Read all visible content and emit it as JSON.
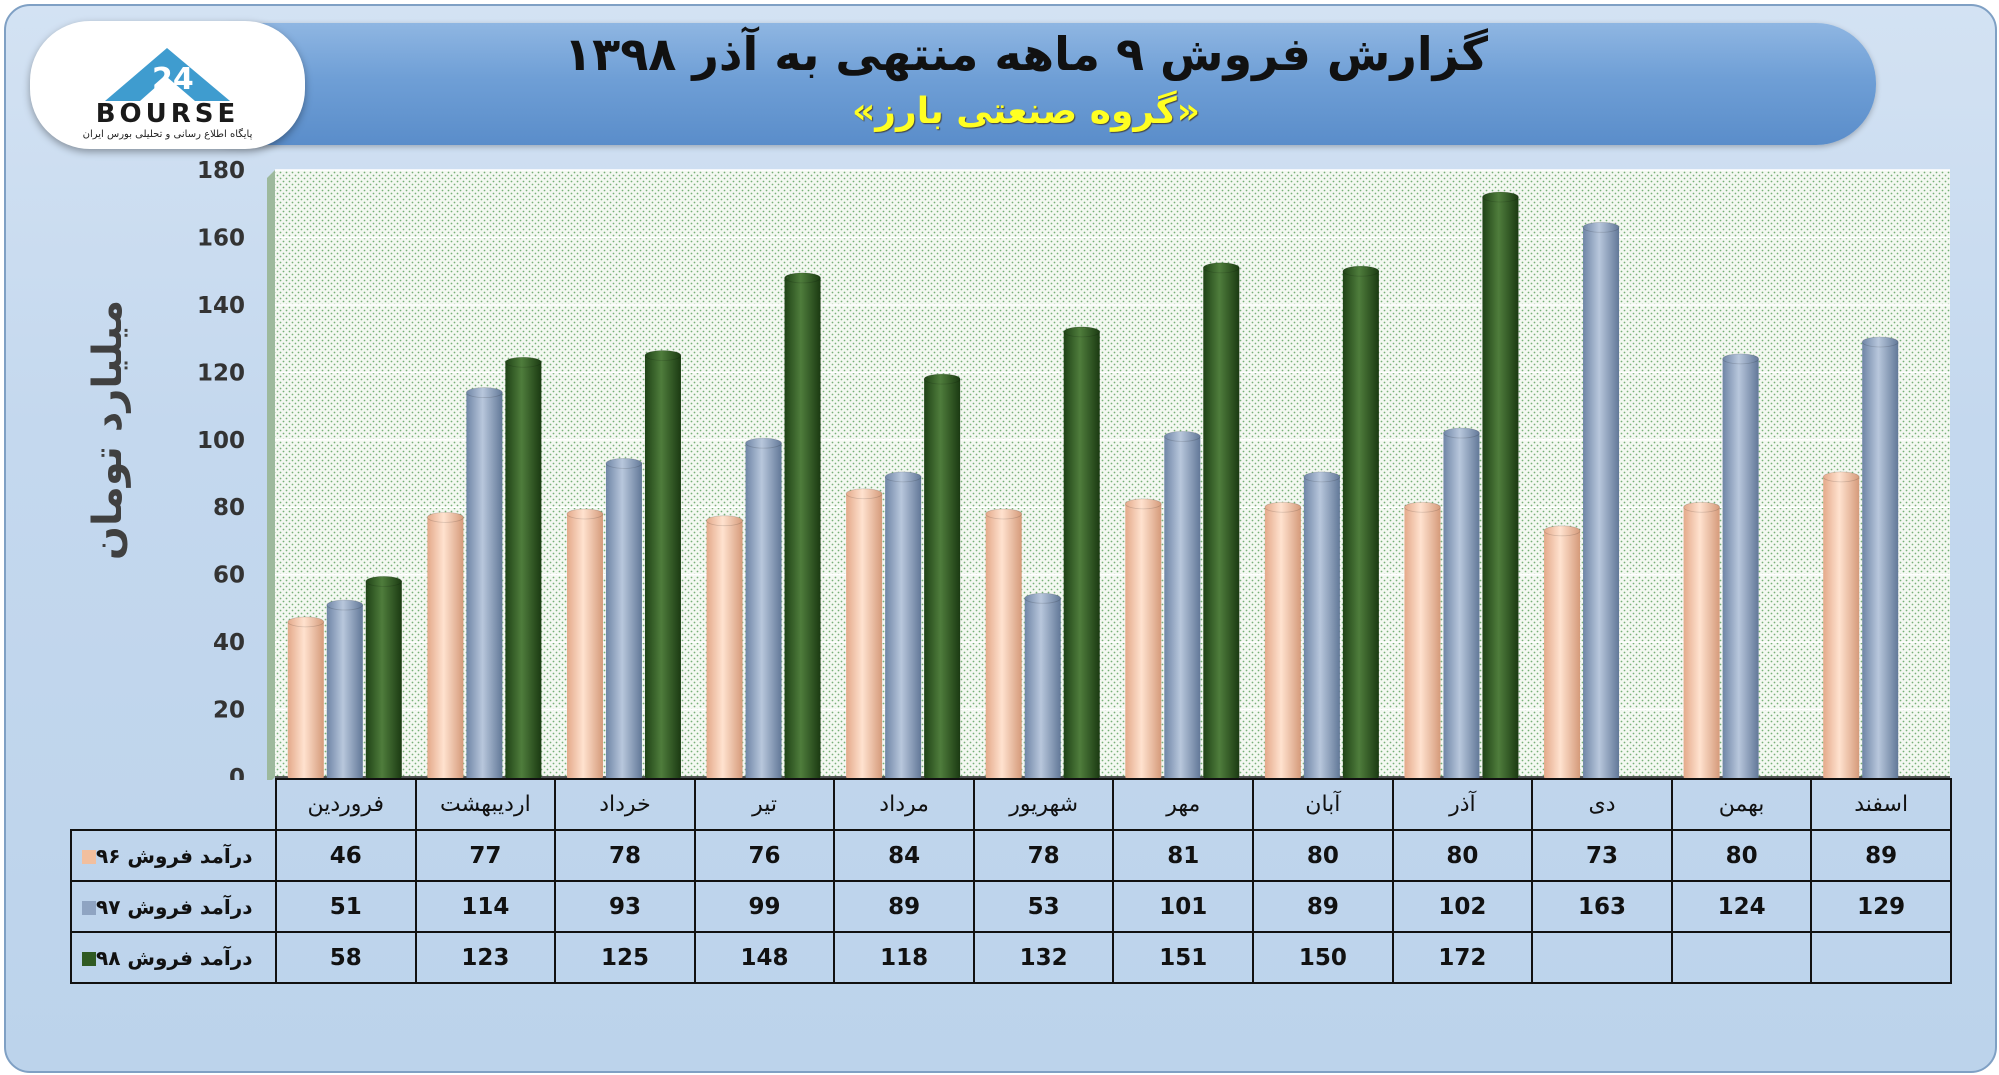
{
  "header": {
    "title": "گزارش فروش ۹ ماهه منتهی به آذر ۱۳۹۸",
    "subtitle": "«گروه صنعتی بارز»"
  },
  "logo": {
    "text": "BOURSE",
    "subtext": "پایگاه اطلاع رسانی و تحلیلی بورس ایران",
    "icon": "bourse-24-logo"
  },
  "colors": {
    "series1": "#f2bf9e",
    "series2": "#8fa4c2",
    "series3": "#2f5a22"
  },
  "chart_data": {
    "type": "bar",
    "categories": [
      "فروردین",
      "اردیبهشت",
      "خرداد",
      "تیر",
      "مرداد",
      "شهریور",
      "مهر",
      "آبان",
      "آذر",
      "دی",
      "بهمن",
      "اسفند"
    ],
    "series": [
      {
        "name": "درآمد فروش ۹۶",
        "values": [
          46,
          77,
          78,
          76,
          84,
          78,
          81,
          80,
          80,
          73,
          80,
          89
        ]
      },
      {
        "name": "درآمد فروش ۹۷",
        "values": [
          51,
          114,
          93,
          99,
          89,
          53,
          101,
          89,
          102,
          163,
          124,
          129
        ]
      },
      {
        "name": "درآمد فروش ۹۸",
        "values": [
          58,
          123,
          125,
          148,
          118,
          132,
          151,
          150,
          172,
          null,
          null,
          null
        ]
      }
    ],
    "ylabel": "میلیارد تومان",
    "ylim": [
      0,
      180
    ],
    "yticks": [
      0,
      20,
      40,
      60,
      80,
      100,
      120,
      140,
      160,
      180
    ],
    "grid": true,
    "legend": "data-table"
  }
}
